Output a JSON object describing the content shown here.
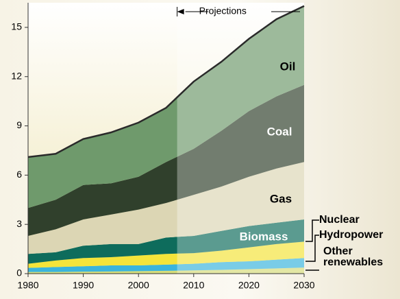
{
  "chart_data": {
    "type": "stacked_area",
    "annotation": "Projections",
    "projection_start": 2007,
    "x": [
      1980,
      1985,
      1990,
      1995,
      2000,
      2005,
      2010,
      2015,
      2020,
      2025,
      2030
    ],
    "series": [
      {
        "name": "Other renewables",
        "color": "#d6dc7a",
        "values": [
          0.1,
          0.1,
          0.12,
          0.13,
          0.15,
          0.17,
          0.2,
          0.23,
          0.27,
          0.32,
          0.37
        ]
      },
      {
        "name": "Hydropower",
        "color": "#3ab4dc",
        "values": [
          0.25,
          0.3,
          0.33,
          0.37,
          0.35,
          0.38,
          0.4,
          0.47,
          0.48,
          0.53,
          0.58
        ]
      },
      {
        "name": "Nuclear",
        "color": "#f4e43a",
        "values": [
          0.25,
          0.4,
          0.5,
          0.5,
          0.6,
          0.65,
          0.65,
          0.7,
          0.85,
          0.95,
          1.0
        ]
      },
      {
        "name": "Biomass",
        "color": "#0e6c5c",
        "values": [
          0.6,
          0.5,
          0.75,
          0.8,
          0.7,
          1.0,
          1.05,
          1.2,
          1.3,
          1.3,
          1.35
        ]
      },
      {
        "name": "Gas",
        "color": "#dcd6b4",
        "values": [
          1.1,
          1.4,
          1.6,
          1.8,
          2.1,
          2.1,
          2.5,
          2.7,
          3.0,
          3.3,
          3.5
        ]
      },
      {
        "name": "Coal",
        "color": "#30402c",
        "values": [
          1.7,
          1.8,
          2.1,
          1.9,
          2.0,
          2.5,
          2.8,
          3.4,
          4.0,
          4.4,
          4.7
        ]
      },
      {
        "name": "Oil",
        "color": "#6f9a6c",
        "values": [
          3.1,
          2.8,
          2.8,
          3.1,
          3.3,
          3.3,
          4.1,
          4.2,
          4.4,
          4.7,
          4.8
        ]
      }
    ],
    "xlim": [
      1980,
      2030
    ],
    "xticks": [
      1980,
      1990,
      2000,
      2010,
      2020,
      2030
    ],
    "ylim": [
      0,
      16.5
    ],
    "yticks": [
      0,
      3,
      6,
      9,
      12,
      15
    ]
  }
}
